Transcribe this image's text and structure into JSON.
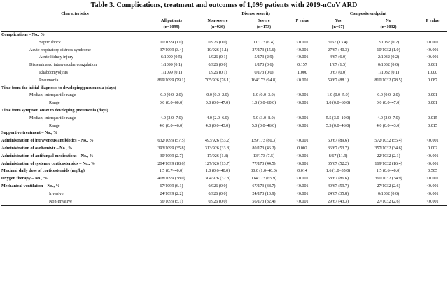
{
  "title": "Table 3. Complications, treatment and outcomes of 1,099 patients with 2019-nCoV ARD",
  "headers": {
    "characteristics": "Characteristics",
    "all_patients": "All patients",
    "all_n": "(n=1099)",
    "disease_severity": "Disease severity",
    "non_severe": "Non-severe",
    "non_severe_n": "(n=926)",
    "severe": "Severe",
    "severe_n": "(n=173)",
    "p_value": "P value",
    "composite": "Composite endpoint",
    "yes": "Yes",
    "yes_n": "(n=67)",
    "no": "No",
    "no_n": "(n=1032)",
    "p_value2": "P value"
  },
  "rows": [
    {
      "type": "section",
      "label": "Complications – No., %",
      "cells": [
        "",
        "",
        "",
        "",
        "",
        "",
        ""
      ]
    },
    {
      "type": "item",
      "indent": "item",
      "label": "Septic shock",
      "cells": [
        "11/1099 (1.0)",
        "0/926 (0.0)",
        "11/173 (6.4)",
        "<0.001",
        "9/67 (13.4)",
        "2/1032 (0.2)",
        "<0.001"
      ]
    },
    {
      "type": "item",
      "indent": "item2",
      "label": "Acute respiratory distress syndrome",
      "cells": [
        "37/1099 (3.4)",
        "10/926 (1.1)",
        "27/173 (15.6)",
        "<0.001",
        "27/67 (40.3)",
        "10/1032 (1.0)",
        "<0.001"
      ]
    },
    {
      "type": "item",
      "indent": "item",
      "label": "Acute kidney injury",
      "cells": [
        "6/1099 (0.5)",
        "1/926 (0.1)",
        "5/173 (2.9)",
        "<0.001",
        "4/67 (6.0)",
        "2/1032 (0.2)",
        "<0.001"
      ]
    },
    {
      "type": "item",
      "indent": "item2",
      "label": "Disseminated intravascular coagulation",
      "cells": [
        "1/1099 (0.1)",
        "0/926 (0.0)",
        "1/173 (0.6)",
        "0.157",
        "1/67 (1.5)",
        "0/1032 (0.0)",
        "0.061"
      ]
    },
    {
      "type": "item",
      "indent": "item",
      "label": "Rhabdomyolysis",
      "cells": [
        "1/1099 (0.1)",
        "1/926 (0.1)",
        "0/173 (0.0)",
        "1.000",
        "0/67 (0.0)",
        "1/1032 (0.1)",
        "1.000"
      ]
    },
    {
      "type": "item",
      "indent": "item",
      "label": "Pneumonia",
      "cells": [
        "869/1099 (79.1)",
        "705/926 (76.1)",
        "164/173 (94.8)",
        "<0.001",
        "59/67 (88.1)",
        "810/1032 (78.5)",
        "0.087"
      ]
    },
    {
      "type": "section",
      "label": "Time from the initial diagnosis to developing pneumonia (days)",
      "cells": [
        "",
        "",
        "",
        "",
        "",
        "",
        ""
      ]
    },
    {
      "type": "item",
      "indent": "item2",
      "label": "Median, interquartile range",
      "cells": [
        "0.0 (0.0–2.0)",
        "0.0 (0.0–2.0)",
        "1.0 (0.0–3.0)",
        "<0.001",
        "1.0 (0.0–5.0)",
        "0.0 (0.0–2.0)",
        "0.001"
      ]
    },
    {
      "type": "item",
      "indent": "item3",
      "label": "Range",
      "cells": [
        "0.0 (0.0–60.0)",
        "0.0 (0.0–47.0)",
        "1.0 (0.0–60.0)",
        "<0.001",
        "1.0 (0.0–60.0)",
        "0.0 (0.0–47.0)",
        "0.001"
      ]
    },
    {
      "type": "section",
      "label": "Time from symptom onset to developing pneumonia (days)",
      "cells": [
        "",
        "",
        "",
        "",
        "",
        "",
        ""
      ]
    },
    {
      "type": "item",
      "indent": "item2",
      "label": "Median, interquartile range",
      "cells": [
        "4.0 (2.0–7.0)",
        "4.0 (2.0–6.0)",
        "5.0 (3.0–8.0)",
        "<0.001",
        "5.5 (3.0–10.0)",
        "4.0 (2.0–7.0)",
        "0.015"
      ]
    },
    {
      "type": "item",
      "indent": "item3",
      "label": "Range",
      "cells": [
        "4.0 (0.0–46.0)",
        "4.0 (0.0–43.0)",
        "5.0 (0.0–46.0)",
        "<0.001",
        "5.5 (0.0–46.0)",
        "4.0 (0.0–43.0)",
        "0.015"
      ]
    },
    {
      "type": "section",
      "label": "Supportive treatment – No., %",
      "cells": [
        "",
        "",
        "",
        "",
        "",
        "",
        ""
      ]
    },
    {
      "type": "section",
      "label": "Administration of intravenous antibiotics – No., %",
      "cells": [
        "632/1099 (57.5)",
        "493/926 (53.2)",
        "139/173 (80.3)",
        "<0.001",
        "60/67 (89.6)",
        "572/1032 (55.4)",
        "<0.001"
      ]
    },
    {
      "type": "section",
      "label": "Administration of oseltamivir – No., %",
      "cells": [
        "393/1099 (35.8)",
        "313/926 (33.8)",
        "80/173 (46.2)",
        "0.002",
        "36/67 (53.7)",
        "357/1032 (34.6)",
        "0.002"
      ]
    },
    {
      "type": "section",
      "label": "Administration of antifungal medications – No., %",
      "cells": [
        "30/1099 (2.7)",
        "17/926 (1.8)",
        "13/173 (7.5)",
        "<0.001",
        "8/67 (11.9)",
        "22/1032 (2.1)",
        "<0.001"
      ]
    },
    {
      "type": "section",
      "label": "Administration of systemic corticosteroids – No., %",
      "cells": [
        "204/1099 (18.6)",
        "127/926 (13.7)",
        "77/173 (44.5)",
        "<0.001",
        "35/67 (52.2)",
        "169/1032 (16.4)",
        "<0.001"
      ]
    },
    {
      "type": "section",
      "label": "Maximal daily dose of corticosteroids (mg/kg)",
      "cells": [
        "1.5 (0.7–40.0)",
        "1.0 (0.6–40.0)",
        "30.0 (1.0–40.0)",
        "0.014",
        "1.6 (1.0–35.0)",
        "1.5 (0.6–40.0)",
        "0.505"
      ]
    },
    {
      "type": "section",
      "label": "Oxygen therapy – No., %",
      "cells": [
        "418/1099 (38.0)",
        "304/926 (32.8)",
        "114/173 (65.9)",
        "<0.001",
        "58/67 (86.6)",
        "360/1032 (34.9)",
        "<0.001"
      ]
    },
    {
      "type": "section",
      "label": "Mechanical ventilation – No., %",
      "cells": [
        "67/1099 (6.1)",
        "0/926 (0.0)",
        "67/173 (38.7)",
        "<0.001",
        "40/67 (59.7)",
        "27/1032 (2.6)",
        "<0.001"
      ]
    },
    {
      "type": "item",
      "indent": "item3",
      "label": "Invasive",
      "cells": [
        "24/1099 (2.2)",
        "0/926 (0.0)",
        "24/173 (13.9)",
        "<0.001",
        "24/67 (35.8)",
        "0/1032 (0.0)",
        "<0.001"
      ]
    },
    {
      "type": "item",
      "indent": "item3",
      "label": "Non-invasive",
      "cells": [
        "56/1099 (5.1)",
        "0/926 (0.0)",
        "56/173 (32.4)",
        "<0.001",
        "29/67 (43.3)",
        "27/1032 (2.6)",
        "<0.001"
      ]
    }
  ]
}
